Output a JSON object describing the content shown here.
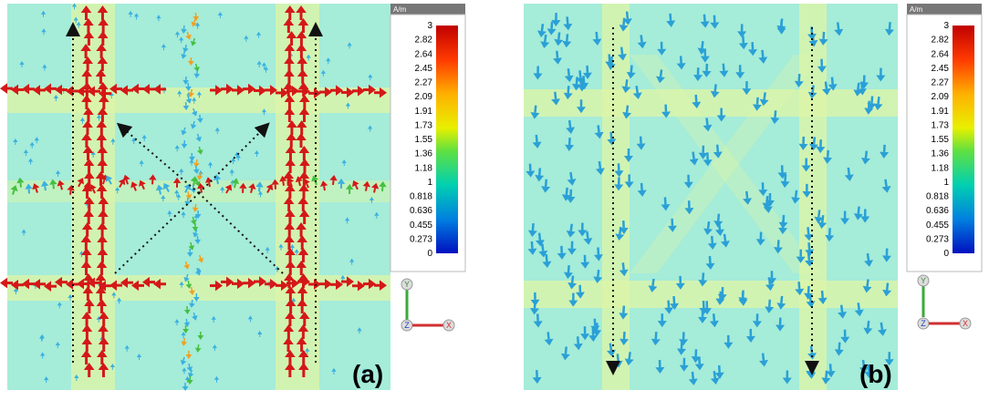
{
  "colorbar": {
    "unit": "A/m",
    "ticks": [
      "3",
      "2.82",
      "2.64",
      "2.45",
      "2.27",
      "2.09",
      "1.91",
      "1.73",
      "1.55",
      "1.36",
      "1.18",
      "1",
      "0.818",
      "0.636",
      "0.455",
      "0.273",
      "0"
    ]
  },
  "axes": {
    "y": "Y",
    "z": "Z",
    "x": "X"
  },
  "panels": [
    {
      "label": "(a)"
    },
    {
      "label": "(b)"
    }
  ],
  "colors": {
    "background": "#a5ecd9",
    "strip": "#dff5a6",
    "arrow_high": "#d41818",
    "arrow_low": "#2aa0d6",
    "guide_line": "#111111"
  }
}
